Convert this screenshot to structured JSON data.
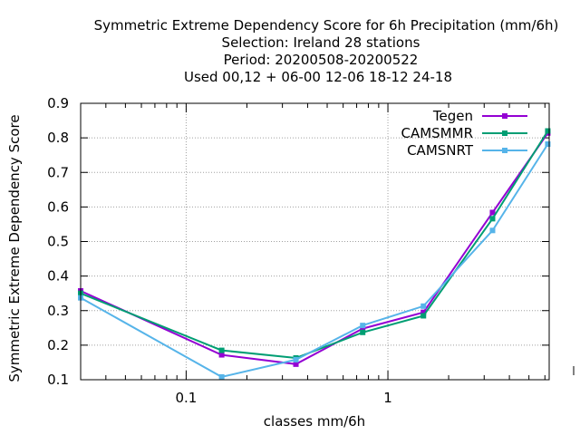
{
  "chart_data": {
    "type": "line",
    "title_lines": [
      "Symmetric Extreme Dependency Score  for 6h Precipitation (mm/6h)",
      "Selection: Ireland     28 stations",
      "Period: 20200508-20200522",
      "Used  00,12  + 06-00 12-06 18-12 24-18"
    ],
    "xlabel": "classes mm/6h",
    "ylabel": "Symmetric Extreme Dependency Score",
    "x_scale": "log",
    "xlim": [
      0.03,
      6.3
    ],
    "ylim": [
      0.1,
      0.9
    ],
    "x_ticks": [
      {
        "value": 0.1,
        "label": "0.1"
      },
      {
        "value": 1,
        "label": "1"
      }
    ],
    "y_ticks": [
      {
        "value": 0.1,
        "label": "0.1"
      },
      {
        "value": 0.2,
        "label": "0.2"
      },
      {
        "value": 0.3,
        "label": "0.3"
      },
      {
        "value": 0.4,
        "label": "0.4"
      },
      {
        "value": 0.5,
        "label": "0.5"
      },
      {
        "value": 0.6,
        "label": "0.6"
      },
      {
        "value": 0.7,
        "label": "0.7"
      },
      {
        "value": 0.8,
        "label": "0.8"
      },
      {
        "value": 0.9,
        "label": "0.9"
      }
    ],
    "grid": true,
    "legend_position": "top-right",
    "series": [
      {
        "name": "Tegen",
        "color": "#9400d3",
        "x": [
          0.03,
          0.15,
          0.35,
          0.75,
          1.5,
          3.3,
          6.2
        ],
        "y": [
          0.357,
          0.172,
          0.145,
          0.248,
          0.295,
          0.584,
          0.814
        ]
      },
      {
        "name": "CAMSMMR",
        "color": "#009e73",
        "x": [
          0.03,
          0.15,
          0.35,
          0.75,
          1.5,
          3.3,
          6.2
        ],
        "y": [
          0.35,
          0.185,
          0.163,
          0.237,
          0.285,
          0.566,
          0.82
        ]
      },
      {
        "name": "CAMSNRT",
        "color": "#56b4e9",
        "x": [
          0.03,
          0.15,
          0.35,
          0.75,
          1.5,
          3.3,
          6.2
        ],
        "y": [
          0.337,
          0.108,
          0.158,
          0.257,
          0.313,
          0.532,
          0.782
        ]
      }
    ]
  }
}
